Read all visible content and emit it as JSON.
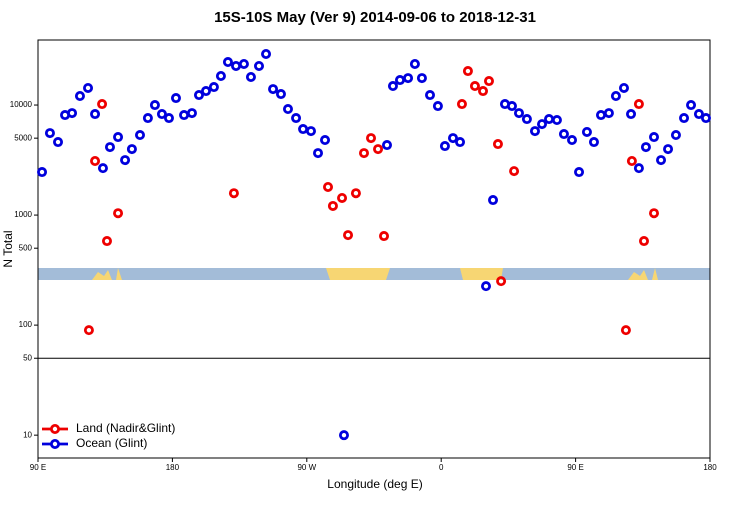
{
  "chart_data": {
    "type": "scatter",
    "title": "15S-10S May (Ver 9)   2014-09-06 to 2018-12-31",
    "xlabel": "Longitude (deg E)",
    "ylabel": "N Total",
    "xlim": [
      90,
      540
    ],
    "ylim": [
      6.2,
      39000
    ],
    "log_y": true,
    "hline": 50,
    "legend": "lower left",
    "xticks": [
      {
        "value": 90,
        "label": "90 E"
      },
      {
        "value": 180,
        "label": "180"
      },
      {
        "value": 270,
        "label": "90 W"
      },
      {
        "value": 360,
        "label": "0"
      },
      {
        "value": 450,
        "label": "90 E"
      },
      {
        "value": 540,
        "label": "180"
      }
    ],
    "yticks": [
      10,
      50,
      100,
      500,
      1000,
      5000,
      10000
    ],
    "series": [
      {
        "name": "Land (Nadir&Glint)",
        "color": "#ee0000",
        "x": [
          124.1,
          128.2,
          132.9,
          136.2,
          143.6,
          221.2,
          284.2,
          287.5,
          293.6,
          297.6,
          302.9,
          308.3,
          313.0,
          317.7,
          321.7,
          373.9,
          377.9,
          382.6,
          388.0,
          392.0,
          398.0,
          400.1,
          408.8,
          483.7,
          487.7,
          492.4,
          495.8,
          502.5
        ],
        "values": [
          90,
          3100,
          10210,
          581,
          1040,
          1580,
          1800,
          1210,
          1430,
          658,
          1580,
          3660,
          5010,
          3980,
          645,
          10210,
          20370,
          14890,
          13400,
          16520,
          4420,
          251,
          2510,
          90,
          3100,
          10210,
          581,
          1040
        ]
      },
      {
        "name": "Ocean (Glint)",
        "color": "#0000dd",
        "x": [
          92.7,
          98.0,
          103.4,
          108.1,
          112.8,
          118.1,
          123.5,
          128.2,
          133.5,
          138.2,
          143.6,
          148.3,
          152.9,
          158.3,
          163.6,
          168.3,
          173.0,
          177.7,
          182.4,
          187.8,
          193.1,
          197.8,
          202.5,
          207.8,
          212.5,
          217.2,
          222.6,
          227.9,
          232.6,
          238.0,
          242.7,
          247.4,
          252.7,
          257.4,
          262.8,
          267.5,
          272.8,
          277.5,
          282.2,
          294.9,
          323.7,
          327.7,
          332.4,
          337.8,
          342.4,
          347.1,
          352.5,
          357.8,
          362.5,
          367.9,
          372.6,
          390.0,
          394.7,
          402.7,
          407.4,
          412.1,
          417.4,
          422.8,
          427.5,
          432.2,
          437.5,
          442.2,
          447.6,
          452.3,
          457.6,
          462.3,
          467.0,
          472.3,
          477.0,
          482.4,
          487.1,
          492.4,
          497.1,
          502.5,
          507.2,
          511.9,
          517.2,
          522.6,
          527.3,
          532.6,
          537.3
        ],
        "values": [
          2460,
          5560,
          4610,
          8110,
          8450,
          12080,
          14290,
          8280,
          2670,
          4150,
          5120,
          3160,
          3980,
          5340,
          7620,
          10000,
          8280,
          7620,
          11580,
          8110,
          8450,
          12330,
          13400,
          14570,
          18360,
          24600,
          22640,
          23600,
          17980,
          22640,
          29100,
          13970,
          12590,
          9200,
          7620,
          6050,
          5800,
          3660,
          4810,
          10,
          4330,
          14890,
          16870,
          17580,
          23600,
          17580,
          12330,
          9790,
          4240,
          5010,
          4610,
          226,
          1370,
          10210,
          9790,
          8450,
          7460,
          5800,
          6710,
          7460,
          7310,
          5450,
          4810,
          2460,
          5690,
          4610,
          8110,
          8450,
          12080,
          14290,
          8280,
          2670,
          4150,
          5120,
          3160,
          3980,
          5340,
          7620,
          10000,
          8280,
          7620
        ]
      }
    ]
  }
}
